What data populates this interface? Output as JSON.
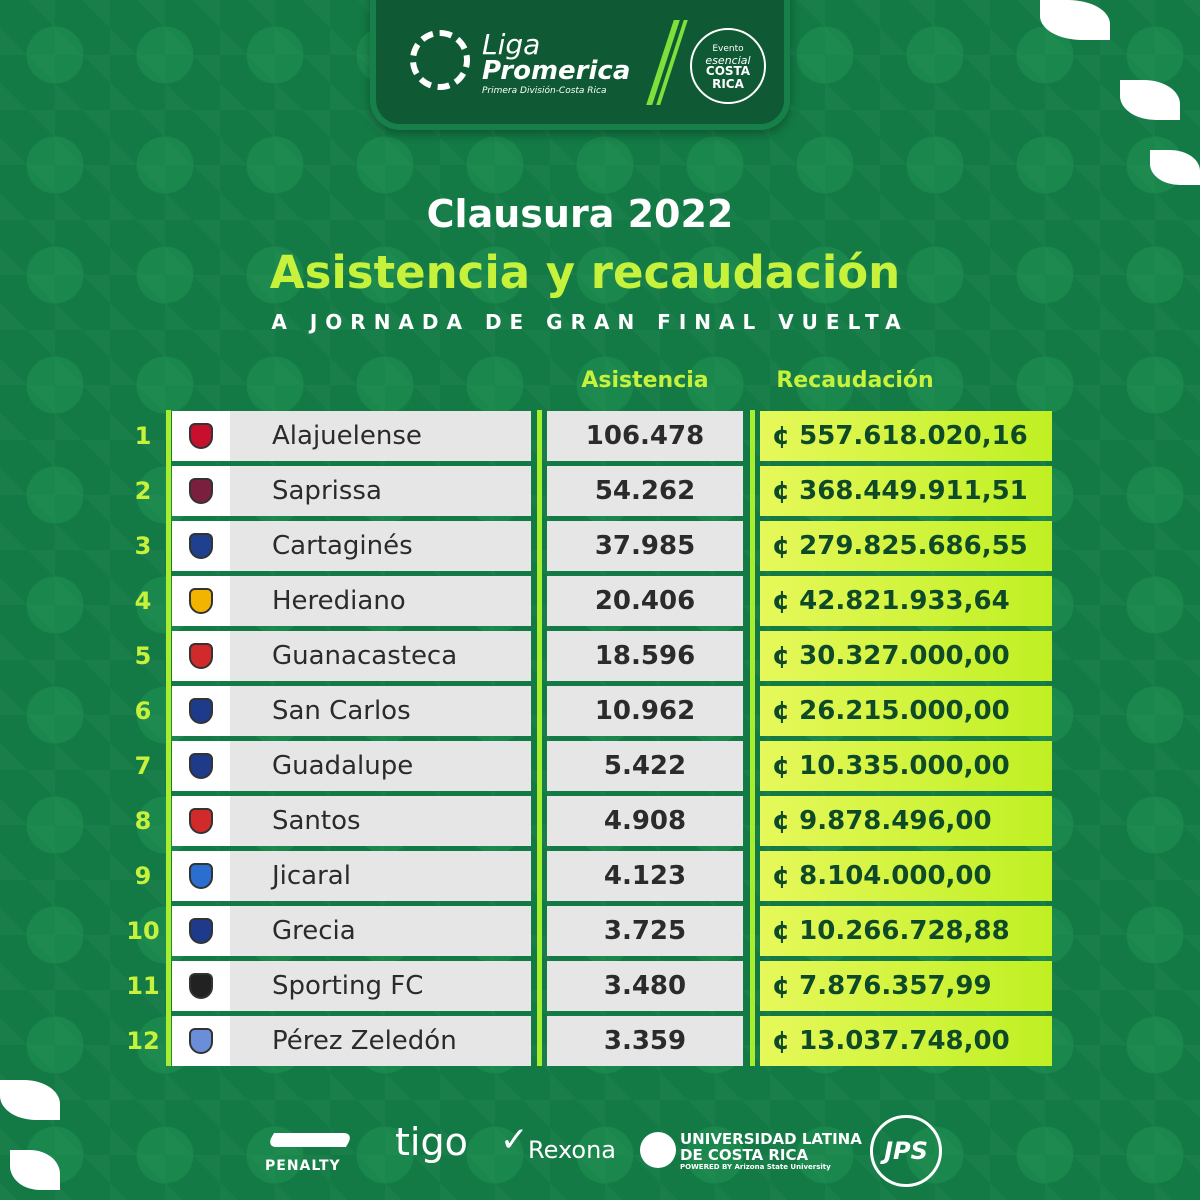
{
  "header": {
    "liga_line1": "Liga",
    "liga_line2": "Promerica",
    "liga_line3": "Primera División-Costa Rica",
    "evento_line1": "Evento",
    "evento_line2": "esencial",
    "evento_line3": "COSTA",
    "evento_line4": "RICA"
  },
  "title": "Clausura 2022",
  "subtitle": "Asistencia y recaudación",
  "tagline": "A JORNADA DE GRAN FINAL VUELTA",
  "columns": {
    "attendance": "Asistencia",
    "revenue": "Recaudación"
  },
  "rows": [
    {
      "rank": "1",
      "team": "Alajuelense",
      "attendance": "106.478",
      "revenue": "¢ 557.618.020,16",
      "crest": "#c8102e"
    },
    {
      "rank": "2",
      "team": "Saprissa",
      "attendance": "54.262",
      "revenue": "¢ 368.449.911,51",
      "crest": "#7a1f3d"
    },
    {
      "rank": "3",
      "team": "Cartaginés",
      "attendance": "37.985",
      "revenue": "¢ 279.825.686,55",
      "crest": "#1f3f8f"
    },
    {
      "rank": "4",
      "team": "Herediano",
      "attendance": "20.406",
      "revenue": "¢ 42.821.933,64",
      "crest": "#f2b400"
    },
    {
      "rank": "5",
      "team": "Guanacasteca",
      "attendance": "18.596",
      "revenue": "¢ 30.327.000,00",
      "crest": "#d02a2a"
    },
    {
      "rank": "6",
      "team": "San Carlos",
      "attendance": "10.962",
      "revenue": "¢ 26.215.000,00",
      "crest": "#1e3a8a"
    },
    {
      "rank": "7",
      "team": "Guadalupe",
      "attendance": "5.422",
      "revenue": "¢ 10.335.000,00",
      "crest": "#1e3a8a"
    },
    {
      "rank": "8",
      "team": "Santos",
      "attendance": "4.908",
      "revenue": "¢ 9.878.496,00",
      "crest": "#d02a2a"
    },
    {
      "rank": "9",
      "team": "Jicaral",
      "attendance": "4.123",
      "revenue": "¢ 8.104.000,00",
      "crest": "#2a6fd0"
    },
    {
      "rank": "10",
      "team": "Grecia",
      "attendance": "3.725",
      "revenue": "¢ 10.266.728,88",
      "crest": "#1e3a8a"
    },
    {
      "rank": "11",
      "team": "Sporting FC",
      "attendance": "3.480",
      "revenue": "¢ 7.876.357,99",
      "crest": "#222222"
    },
    {
      "rank": "12",
      "team": "Pérez Zeledón",
      "attendance": "3.359",
      "revenue": "¢ 13.037.748,00",
      "crest": "#6a8fd8"
    }
  ],
  "sponsors": {
    "penalty": "PENALTY",
    "tigo": "tigo",
    "rexona": "Rexona",
    "ulatina_1": "UNIVERSIDAD LATINA",
    "ulatina_2": "DE COSTA RICA",
    "ulatina_3": "POWERED BY Arizona State University",
    "jps": "JPS"
  },
  "colors": {
    "background": "#137a45",
    "accent": "#c7f23c",
    "panel": "#0f5a35"
  }
}
